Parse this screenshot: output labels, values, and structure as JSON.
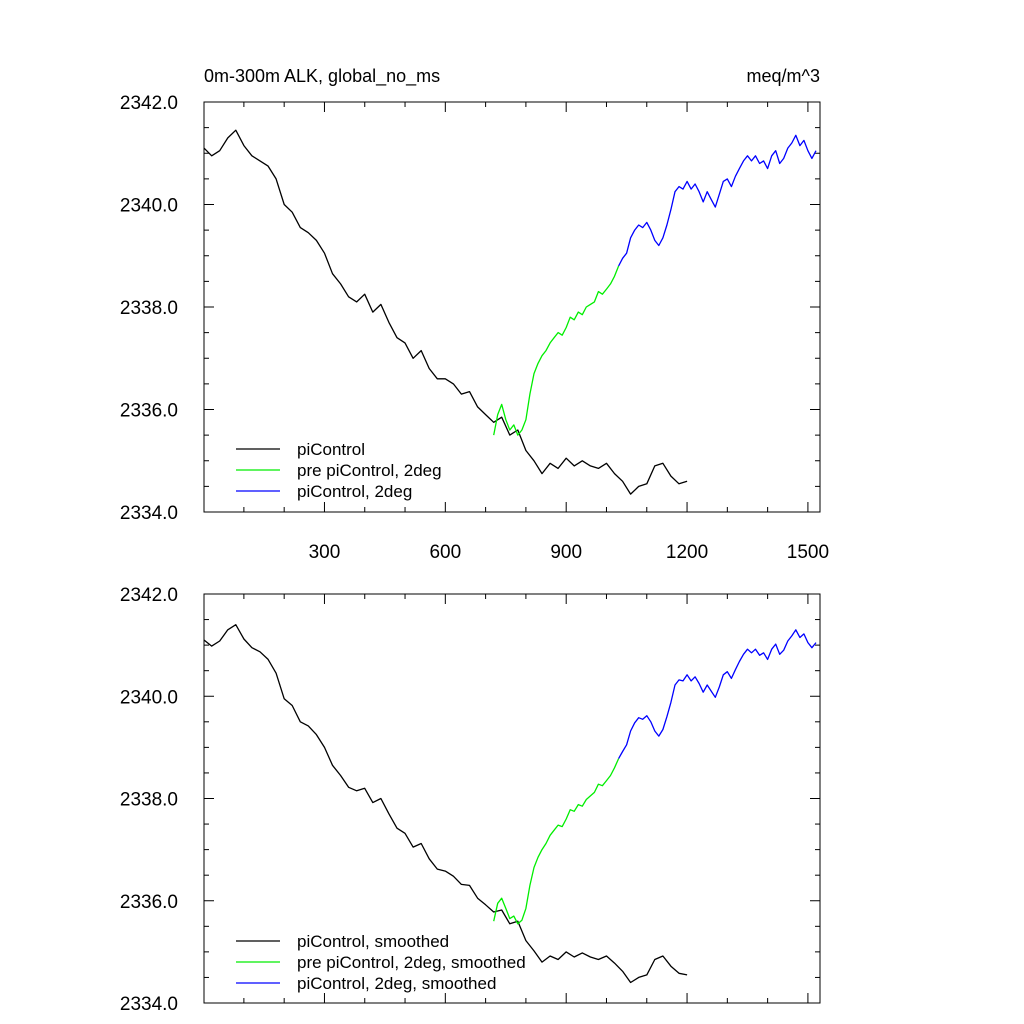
{
  "title_left": "0m-300m ALK, global_no_ms",
  "title_right": "meq/m^3",
  "colors": {
    "piControl": "#000000",
    "pre": "#00ee00",
    "pi2deg": "#0000ff"
  },
  "chart_data": [
    {
      "type": "line",
      "title": "0m-300m ALK, global_no_ms",
      "units": "meq/m^3",
      "xlim": [
        1,
        1530
      ],
      "ylim": [
        2334.0,
        2342.0
      ],
      "xticks_major": [
        300,
        600,
        900,
        1200,
        1500
      ],
      "xtick_labels": [
        "300",
        "600",
        "900",
        "1200",
        "1500"
      ],
      "yticks_major": [
        2334.0,
        2336.0,
        2338.0,
        2340.0,
        2342.0
      ],
      "ytick_labels": [
        "2334.0",
        "2336.0",
        "2338.0",
        "2340.0",
        "2342.0"
      ],
      "grid": false,
      "legend_position": "bottom-left",
      "series": [
        {
          "name": "piControl",
          "color": "#000000",
          "x": [
            1,
            20,
            40,
            60,
            80,
            100,
            120,
            140,
            160,
            180,
            200,
            220,
            240,
            260,
            280,
            300,
            320,
            340,
            360,
            380,
            400,
            420,
            440,
            460,
            480,
            500,
            520,
            540,
            560,
            580,
            600,
            620,
            640,
            660,
            680,
            700,
            720,
            740,
            760,
            780,
            800,
            820,
            840,
            860,
            880,
            900,
            920,
            940,
            960,
            980,
            1000,
            1020,
            1040,
            1060,
            1080,
            1100,
            1120,
            1140,
            1160,
            1180,
            1200
          ],
          "y": [
            2341.1,
            2340.95,
            2341.05,
            2341.3,
            2341.45,
            2341.15,
            2340.95,
            2340.85,
            2340.75,
            2340.5,
            2340.0,
            2339.85,
            2339.55,
            2339.45,
            2339.3,
            2339.05,
            2338.65,
            2338.45,
            2338.2,
            2338.1,
            2338.25,
            2337.9,
            2338.05,
            2337.7,
            2337.4,
            2337.3,
            2337.0,
            2337.15,
            2336.8,
            2336.6,
            2336.6,
            2336.5,
            2336.3,
            2336.35,
            2336.05,
            2335.9,
            2335.75,
            2335.85,
            2335.5,
            2335.6,
            2335.2,
            2335.0,
            2334.75,
            2334.95,
            2334.85,
            2335.05,
            2334.9,
            2335.0,
            2334.9,
            2334.85,
            2334.95,
            2334.75,
            2334.6,
            2334.35,
            2334.5,
            2334.55,
            2334.9,
            2334.95,
            2334.7,
            2334.55,
            2334.6
          ]
        },
        {
          "name": "pre piControl, 2deg",
          "color": "#00ee00",
          "x": [
            720,
            730,
            740,
            750,
            760,
            770,
            780,
            790,
            800,
            810,
            820,
            830,
            840,
            850,
            860,
            870,
            880,
            890,
            900,
            910,
            920,
            930,
            940,
            950,
            960,
            970,
            980,
            990,
            1000,
            1010,
            1020,
            1030
          ],
          "y": [
            2335.5,
            2335.9,
            2336.1,
            2335.8,
            2335.6,
            2335.7,
            2335.5,
            2335.6,
            2335.8,
            2336.3,
            2336.7,
            2336.9,
            2337.05,
            2337.15,
            2337.3,
            2337.4,
            2337.5,
            2337.45,
            2337.6,
            2337.8,
            2337.75,
            2337.9,
            2337.85,
            2338.0,
            2338.05,
            2338.1,
            2338.3,
            2338.25,
            2338.35,
            2338.45,
            2338.6,
            2338.8
          ]
        },
        {
          "name": "piControl, 2deg",
          "color": "#0000ff",
          "x": [
            1030,
            1040,
            1050,
            1060,
            1070,
            1080,
            1090,
            1100,
            1110,
            1120,
            1130,
            1140,
            1150,
            1160,
            1170,
            1180,
            1190,
            1200,
            1210,
            1220,
            1230,
            1240,
            1250,
            1260,
            1270,
            1280,
            1290,
            1300,
            1310,
            1320,
            1330,
            1340,
            1350,
            1360,
            1370,
            1380,
            1390,
            1400,
            1410,
            1420,
            1430,
            1440,
            1450,
            1460,
            1470,
            1480,
            1490,
            1500,
            1510,
            1520
          ],
          "y": [
            2338.8,
            2338.95,
            2339.05,
            2339.35,
            2339.5,
            2339.6,
            2339.55,
            2339.65,
            2339.5,
            2339.3,
            2339.2,
            2339.35,
            2339.6,
            2339.9,
            2340.25,
            2340.35,
            2340.3,
            2340.45,
            2340.3,
            2340.4,
            2340.25,
            2340.05,
            2340.25,
            2340.1,
            2339.95,
            2340.2,
            2340.45,
            2340.5,
            2340.35,
            2340.55,
            2340.7,
            2340.85,
            2340.95,
            2340.85,
            2340.95,
            2340.8,
            2340.85,
            2340.7,
            2340.95,
            2341.05,
            2340.8,
            2340.9,
            2341.1,
            2341.2,
            2341.35,
            2341.15,
            2341.25,
            2341.05,
            2340.9,
            2341.05
          ]
        }
      ]
    },
    {
      "type": "line",
      "xlim": [
        1,
        1530
      ],
      "ylim": [
        2334.0,
        2342.0
      ],
      "xticks_major": [
        300,
        600,
        900,
        1200,
        1500
      ],
      "yticks_major": [
        2334.0,
        2336.0,
        2338.0,
        2340.0,
        2342.0
      ],
      "ytick_labels": [
        "2334.0",
        "2336.0",
        "2338.0",
        "2340.0",
        "2342.0"
      ],
      "grid": false,
      "legend_position": "bottom-left",
      "series": [
        {
          "name": "piControl, smoothed",
          "color": "#000000",
          "x": [
            1,
            20,
            40,
            60,
            80,
            100,
            120,
            140,
            160,
            180,
            200,
            220,
            240,
            260,
            280,
            300,
            320,
            340,
            360,
            380,
            400,
            420,
            440,
            460,
            480,
            500,
            520,
            540,
            560,
            580,
            600,
            620,
            640,
            660,
            680,
            700,
            720,
            740,
            760,
            780,
            800,
            820,
            840,
            860,
            880,
            900,
            920,
            940,
            960,
            980,
            1000,
            1020,
            1040,
            1060,
            1080,
            1100,
            1120,
            1140,
            1160,
            1180,
            1200
          ],
          "y": [
            2341.1,
            2340.98,
            2341.08,
            2341.3,
            2341.4,
            2341.12,
            2340.95,
            2340.87,
            2340.72,
            2340.45,
            2339.95,
            2339.82,
            2339.5,
            2339.42,
            2339.25,
            2339.0,
            2338.65,
            2338.45,
            2338.22,
            2338.15,
            2338.2,
            2337.92,
            2338.0,
            2337.7,
            2337.42,
            2337.32,
            2337.05,
            2337.12,
            2336.82,
            2336.62,
            2336.58,
            2336.48,
            2336.32,
            2336.3,
            2336.05,
            2335.92,
            2335.78,
            2335.82,
            2335.55,
            2335.6,
            2335.22,
            2335.02,
            2334.8,
            2334.92,
            2334.85,
            2335.0,
            2334.9,
            2334.98,
            2334.9,
            2334.85,
            2334.92,
            2334.78,
            2334.62,
            2334.4,
            2334.5,
            2334.55,
            2334.85,
            2334.92,
            2334.72,
            2334.58,
            2334.55
          ]
        },
        {
          "name": "pre piControl, 2deg, smoothed",
          "color": "#00ee00",
          "x": [
            720,
            730,
            740,
            750,
            760,
            770,
            780,
            790,
            800,
            810,
            820,
            830,
            840,
            850,
            860,
            870,
            880,
            890,
            900,
            910,
            920,
            930,
            940,
            950,
            960,
            970,
            980,
            990,
            1000,
            1010,
            1020,
            1030
          ],
          "y": [
            2335.6,
            2335.95,
            2336.05,
            2335.85,
            2335.65,
            2335.7,
            2335.55,
            2335.62,
            2335.85,
            2336.3,
            2336.65,
            2336.85,
            2337.0,
            2337.12,
            2337.28,
            2337.38,
            2337.48,
            2337.45,
            2337.6,
            2337.78,
            2337.75,
            2337.88,
            2337.85,
            2337.98,
            2338.05,
            2338.12,
            2338.28,
            2338.25,
            2338.35,
            2338.45,
            2338.6,
            2338.78
          ]
        },
        {
          "name": "piControl, 2deg, smoothed",
          "color": "#0000ff",
          "x": [
            1030,
            1040,
            1050,
            1060,
            1070,
            1080,
            1090,
            1100,
            1110,
            1120,
            1130,
            1140,
            1150,
            1160,
            1170,
            1180,
            1190,
            1200,
            1210,
            1220,
            1230,
            1240,
            1250,
            1260,
            1270,
            1280,
            1290,
            1300,
            1310,
            1320,
            1330,
            1340,
            1350,
            1360,
            1370,
            1380,
            1390,
            1400,
            1410,
            1420,
            1430,
            1440,
            1450,
            1460,
            1470,
            1480,
            1490,
            1500,
            1510,
            1520
          ],
          "y": [
            2338.78,
            2338.92,
            2339.05,
            2339.32,
            2339.48,
            2339.58,
            2339.55,
            2339.62,
            2339.5,
            2339.32,
            2339.22,
            2339.35,
            2339.6,
            2339.88,
            2340.22,
            2340.32,
            2340.3,
            2340.42,
            2340.3,
            2340.38,
            2340.25,
            2340.08,
            2340.22,
            2340.1,
            2339.98,
            2340.18,
            2340.42,
            2340.48,
            2340.35,
            2340.52,
            2340.68,
            2340.82,
            2340.92,
            2340.85,
            2340.92,
            2340.8,
            2340.85,
            2340.72,
            2340.92,
            2341.02,
            2340.82,
            2340.9,
            2341.08,
            2341.18,
            2341.3,
            2341.15,
            2341.22,
            2341.05,
            2340.95,
            2341.05
          ]
        }
      ]
    }
  ]
}
